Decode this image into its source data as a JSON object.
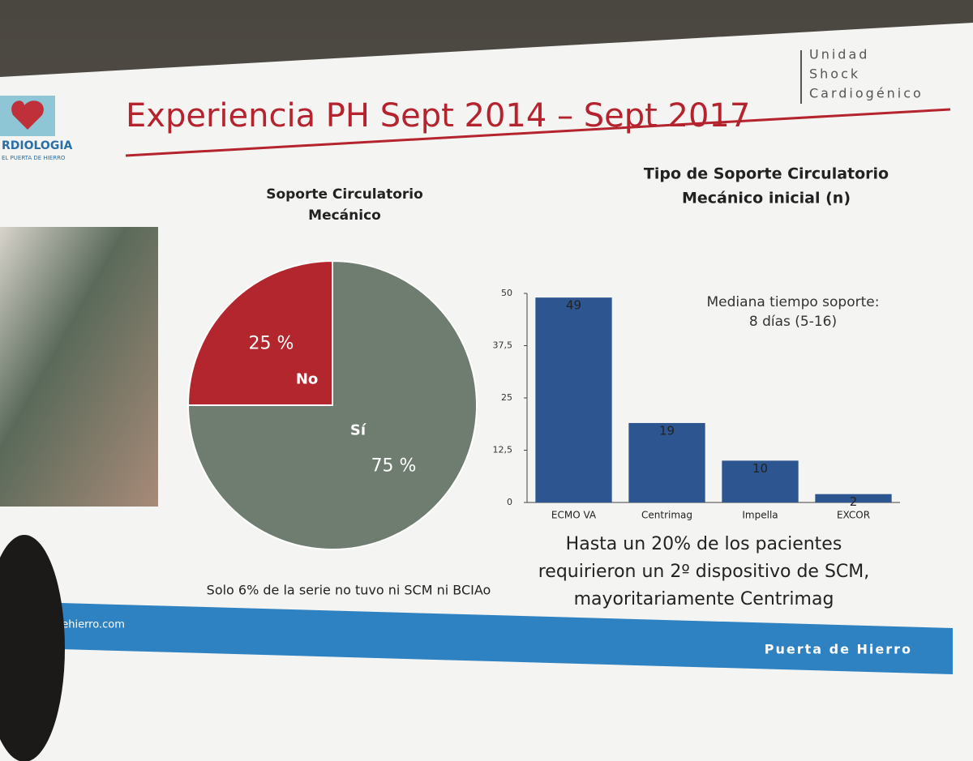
{
  "slide": {
    "title": "Experiencia PH Sept 2014 – Sept 2017",
    "unit_logo": [
      "Unidad",
      "Shock",
      "Cardiogénico"
    ],
    "dept_logo": [
      "RDIOLOGIA",
      "EL PUERTA DE HIERRO"
    ],
    "footer_url": "adehierro.com",
    "footer_brand": "Puerta de Hierro",
    "pie_note": "Solo 6% de la serie no tuvo ni SCM ni BCIAo",
    "bar_annotation": [
      "Mediana tiempo soporte:",
      "8 días (5-16)"
    ],
    "bar_note": [
      "Hasta un 20% de los pacientes",
      "requirieron un 2º dispositivo de SCM,",
      "mayoritariamente Centrimag"
    ]
  },
  "chart_data": [
    {
      "type": "pie",
      "title": [
        "Soporte Circulatorio",
        "Mecánico"
      ],
      "categories": [
        "No",
        "Sí"
      ],
      "values": [
        25,
        75
      ],
      "value_labels": [
        "25 %",
        "75 %"
      ],
      "colors": [
        "#b3262d",
        "#6f7d71"
      ]
    },
    {
      "type": "bar",
      "title": [
        "Tipo de Soporte Circulatorio",
        "Mecánico inicial (n)"
      ],
      "categories": [
        "ECMO VA",
        "Centrimag",
        "Impella",
        "EXCOR"
      ],
      "values": [
        49,
        19,
        10,
        2
      ],
      "color": "#2d5690",
      "ylim": [
        0,
        50
      ],
      "yticks": [
        0,
        {
          "value": 12.5,
          "label": "12,5"
        },
        25,
        {
          "value": 37.5,
          "label": "37,5"
        },
        50
      ],
      "grid": false
    }
  ]
}
